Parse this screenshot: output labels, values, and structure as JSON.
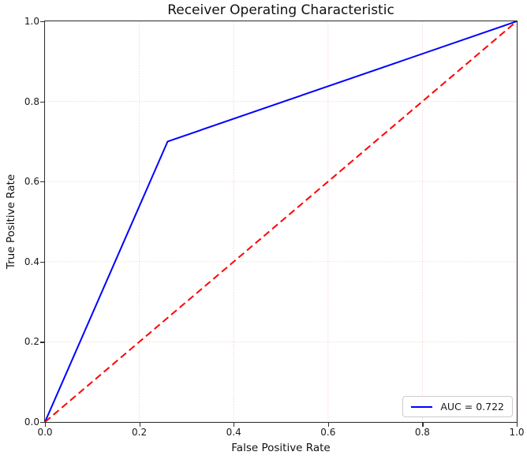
{
  "chart_data": {
    "type": "line",
    "title": "Receiver Operating Characteristic",
    "xlabel": "False Positive Rate",
    "ylabel": "True Positive Rate",
    "xlim": [
      0.0,
      1.0
    ],
    "ylim": [
      0.0,
      1.0
    ],
    "xticks": [
      {
        "value": 0.0,
        "label": "0.0"
      },
      {
        "value": 0.2,
        "label": "0.2"
      },
      {
        "value": 0.4,
        "label": "0.4"
      },
      {
        "value": 0.6,
        "label": "0.6"
      },
      {
        "value": 0.8,
        "label": "0.8"
      },
      {
        "value": 1.0,
        "label": "1.0"
      }
    ],
    "yticks": [
      {
        "value": 0.0,
        "label": "0.0"
      },
      {
        "value": 0.2,
        "label": "0.2"
      },
      {
        "value": 0.4,
        "label": "0.4"
      },
      {
        "value": 0.6,
        "label": "0.6"
      },
      {
        "value": 0.8,
        "label": "0.8"
      },
      {
        "value": 1.0,
        "label": "1.0"
      }
    ],
    "grid": true,
    "grid_color": "#ff0000",
    "grid_opacity": 0.18,
    "legend_position": "lower right",
    "auc": 0.722,
    "series": [
      {
        "name": "roc-curve",
        "legend_label": "AUC = 0.722",
        "color": "#0000ff",
        "line_style": "solid",
        "line_width": 2,
        "points": [
          [
            0.0,
            0.0
          ],
          [
            0.26,
            0.7
          ],
          [
            1.0,
            1.0
          ]
        ]
      },
      {
        "name": "chance-diagonal",
        "legend_label": null,
        "color": "#ff0000",
        "line_style": "dashed",
        "line_width": 2,
        "points": [
          [
            0.0,
            0.0
          ],
          [
            1.0,
            1.0
          ]
        ]
      }
    ]
  },
  "colors": {
    "spine": "#2e2e2e",
    "text": "#1a1a1a",
    "legend_border": "#cccccc",
    "legend_background": "#ffffff"
  }
}
